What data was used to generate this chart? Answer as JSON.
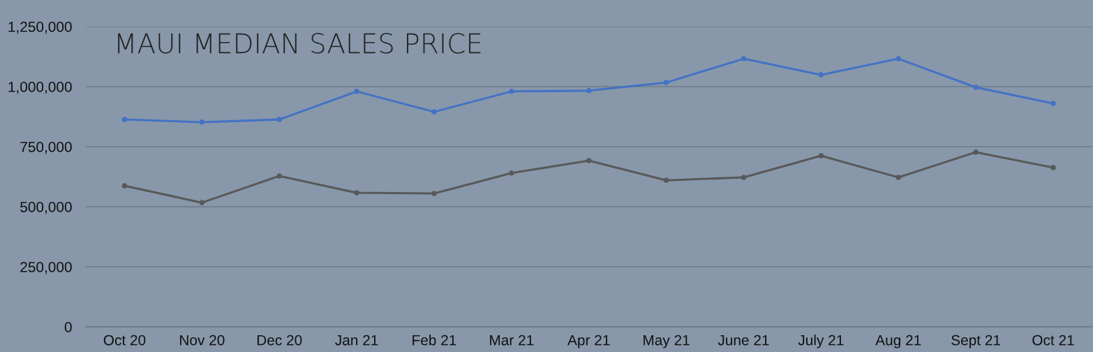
{
  "chart_data": {
    "type": "line",
    "title": "MAUI MEDIAN SALES PRICE",
    "categories": [
      "Oct 20",
      "Nov 20",
      "Dec 20",
      "Jan 21",
      "Feb 21",
      "Mar 21",
      "Apr 21",
      "May 21",
      "June 21",
      "July 21",
      "Aug 21",
      "Sept 21",
      "Oct 21"
    ],
    "series": [
      {
        "color": "#4472c4",
        "values": [
          863000,
          852000,
          863000,
          980000,
          895000,
          980000,
          983000,
          1017000,
          1116000,
          1049000,
          1116000,
          997000,
          930000
        ]
      },
      {
        "color": "#595959",
        "values": [
          587000,
          517000,
          628000,
          558000,
          555000,
          640000,
          692000,
          610000,
          622000,
          712000,
          622000,
          727000,
          663000
        ]
      }
    ],
    "ylim": [
      0,
      1250000
    ],
    "yticks": [
      {
        "value": 0,
        "label": "0"
      },
      {
        "value": 250000,
        "label": "250,000"
      },
      {
        "value": 500000,
        "label": "500,000"
      },
      {
        "value": 750000,
        "label": "750,000"
      },
      {
        "value": 1000000,
        "label": "1,000,000"
      },
      {
        "value": 1250000,
        "label": "1,250,000"
      }
    ],
    "grid": "y",
    "legend": false,
    "marker": "circle",
    "line_style": "solid"
  }
}
